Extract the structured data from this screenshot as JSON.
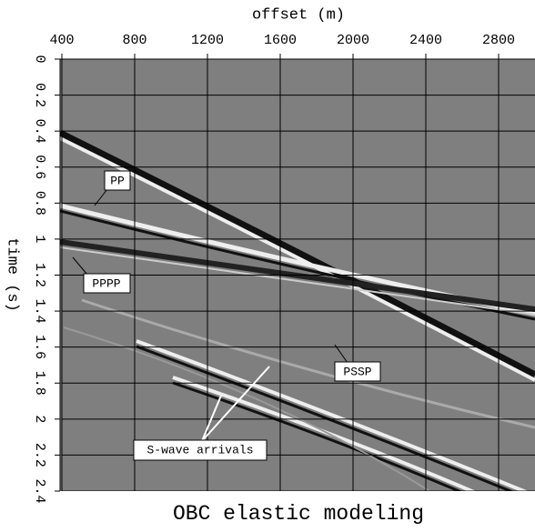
{
  "chart_data": {
    "type": "seismic",
    "title": "OBC elastic modeling",
    "x_label": "offset (m)",
    "y_label": "time (s)",
    "xlim": [
      400,
      3000
    ],
    "xticks": [
      400,
      800,
      1200,
      1600,
      2000,
      2400,
      2800
    ],
    "ylim": [
      0,
      2.4
    ],
    "yticks": [
      0,
      0.2,
      0.4,
      0.6,
      0.8,
      1,
      1.2,
      1.4,
      1.6,
      1.8,
      2,
      2.2,
      2.4
    ],
    "y_inverted": true,
    "x_axis_position": "top",
    "grid": true,
    "grid_color": "#000000",
    "background_color": "#7f7f7f",
    "annotations": [
      "PP",
      "PPPP",
      "PSSP",
      "S-wave arrivals"
    ]
  }
}
